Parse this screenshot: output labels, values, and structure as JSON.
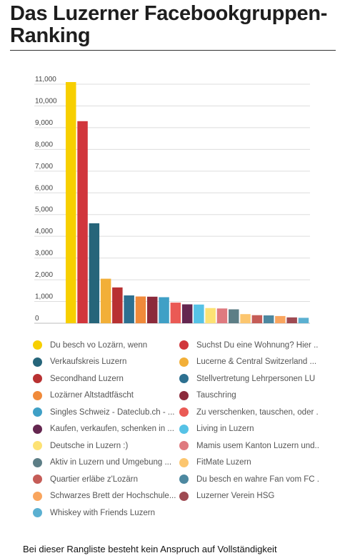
{
  "page": {
    "title": "Das Luzerner Facebookgruppen-Ranking",
    "footer_note": "Bei dieser Rangliste besteht kein Anspruch auf Vollständigkeit"
  },
  "chart_data": {
    "type": "bar",
    "title": "",
    "xlabel": "",
    "ylabel": "",
    "ylim": [
      0,
      11000
    ],
    "yticks": [
      "0",
      "1,000",
      "2,000",
      "3,000",
      "4,000",
      "5,000",
      "6,000",
      "7,000",
      "8,000",
      "9,000",
      "10,000",
      "11,000"
    ],
    "grid": true,
    "legend": "bottom",
    "series": [
      {
        "name": "Du besch vo Lozärn, wenn",
        "value": 11100,
        "color": "#f7cf00"
      },
      {
        "name": "Suchst Du eine Wohnung? Hier ...",
        "value": 9300,
        "color": "#d1363c"
      },
      {
        "name": "Verkaufskreis Luzern",
        "value": 4600,
        "color": "#26657a"
      },
      {
        "name": "Lucerne & Central Switzerland ...",
        "value": 2050,
        "color": "#f2af38"
      },
      {
        "name": "Secondhand Luzern",
        "value": 1650,
        "color": "#b83132"
      },
      {
        "name": "Stellvertretung Lehrpersonen LU",
        "value": 1280,
        "color": "#2d7090"
      },
      {
        "name": "Lozärner Altstadtfäscht",
        "value": 1230,
        "color": "#f08a3a"
      },
      {
        "name": "Tauschring",
        "value": 1220,
        "color": "#8b2a3b"
      },
      {
        "name": "Singles Schweiz - Dateclub.ch - ...",
        "value": 1200,
        "color": "#3fa0c6"
      },
      {
        "name": "Zu verschenken, tauschen, oder ...",
        "value": 950,
        "color": "#ea5a55"
      },
      {
        "name": "Kaufen, verkaufen, schenken in ...",
        "value": 870,
        "color": "#642650"
      },
      {
        "name": "Living in Luzern",
        "value": 860,
        "color": "#56c2e6"
      },
      {
        "name": "Deutsche in Luzern :)",
        "value": 700,
        "color": "#fde274"
      },
      {
        "name": "Mamis usem Kanton Luzern und...",
        "value": 680,
        "color": "#df7a7f"
      },
      {
        "name": "Aktiv in Luzern und Umgebung ...",
        "value": 640,
        "color": "#5d7e86"
      },
      {
        "name": "FitMate Luzern",
        "value": 420,
        "color": "#fcc66f"
      },
      {
        "name": "Quartier erläbe z'Lozärn",
        "value": 370,
        "color": "#c55c57"
      },
      {
        "name": "Du besch en wahre Fan vom FC ...",
        "value": 360,
        "color": "#4d88a0"
      },
      {
        "name": "Schwarzes Brett der Hochschule...",
        "value": 330,
        "color": "#f9a55e"
      },
      {
        "name": "Luzerner Verein HSG",
        "value": 270,
        "color": "#9e4a52"
      },
      {
        "name": "Whiskey with Friends Luzern",
        "value": 250,
        "color": "#5bb0d1"
      }
    ]
  }
}
